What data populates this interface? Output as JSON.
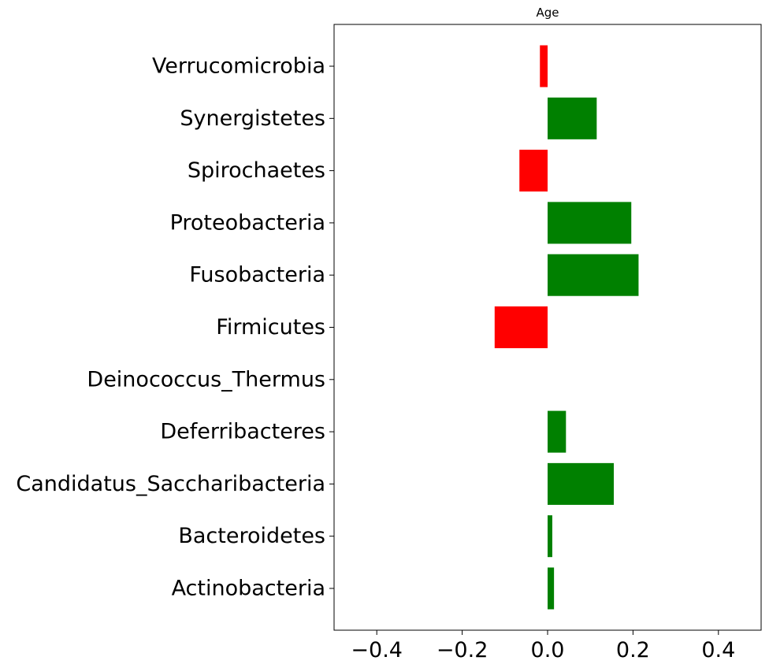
{
  "chart_data": {
    "type": "bar",
    "orientation": "horizontal",
    "title": "Age",
    "xlabel": "",
    "ylabel": "",
    "xlim": [
      -0.5,
      0.5
    ],
    "xticks": [
      -0.4,
      -0.2,
      0.0,
      0.2,
      0.4
    ],
    "xtick_labels": [
      "−0.4",
      "−0.2",
      "0.0",
      "0.2",
      "0.4"
    ],
    "grid": false,
    "positive_color": "#008000",
    "negative_color": "#ff0000",
    "categories": [
      "Actinobacteria",
      "Bacteroidetes",
      "Candidatus_Saccharibacteria",
      "Deferribacteres",
      "Deinococcus_Thermus",
      "Firmicutes",
      "Fusobacteria",
      "Proteobacteria",
      "Spirochaetes",
      "Synergistetes",
      "Verrucomicrobia"
    ],
    "values": [
      0.015,
      0.011,
      0.155,
      0.043,
      0.0,
      -0.124,
      0.213,
      0.196,
      -0.066,
      0.115,
      -0.018
    ]
  }
}
